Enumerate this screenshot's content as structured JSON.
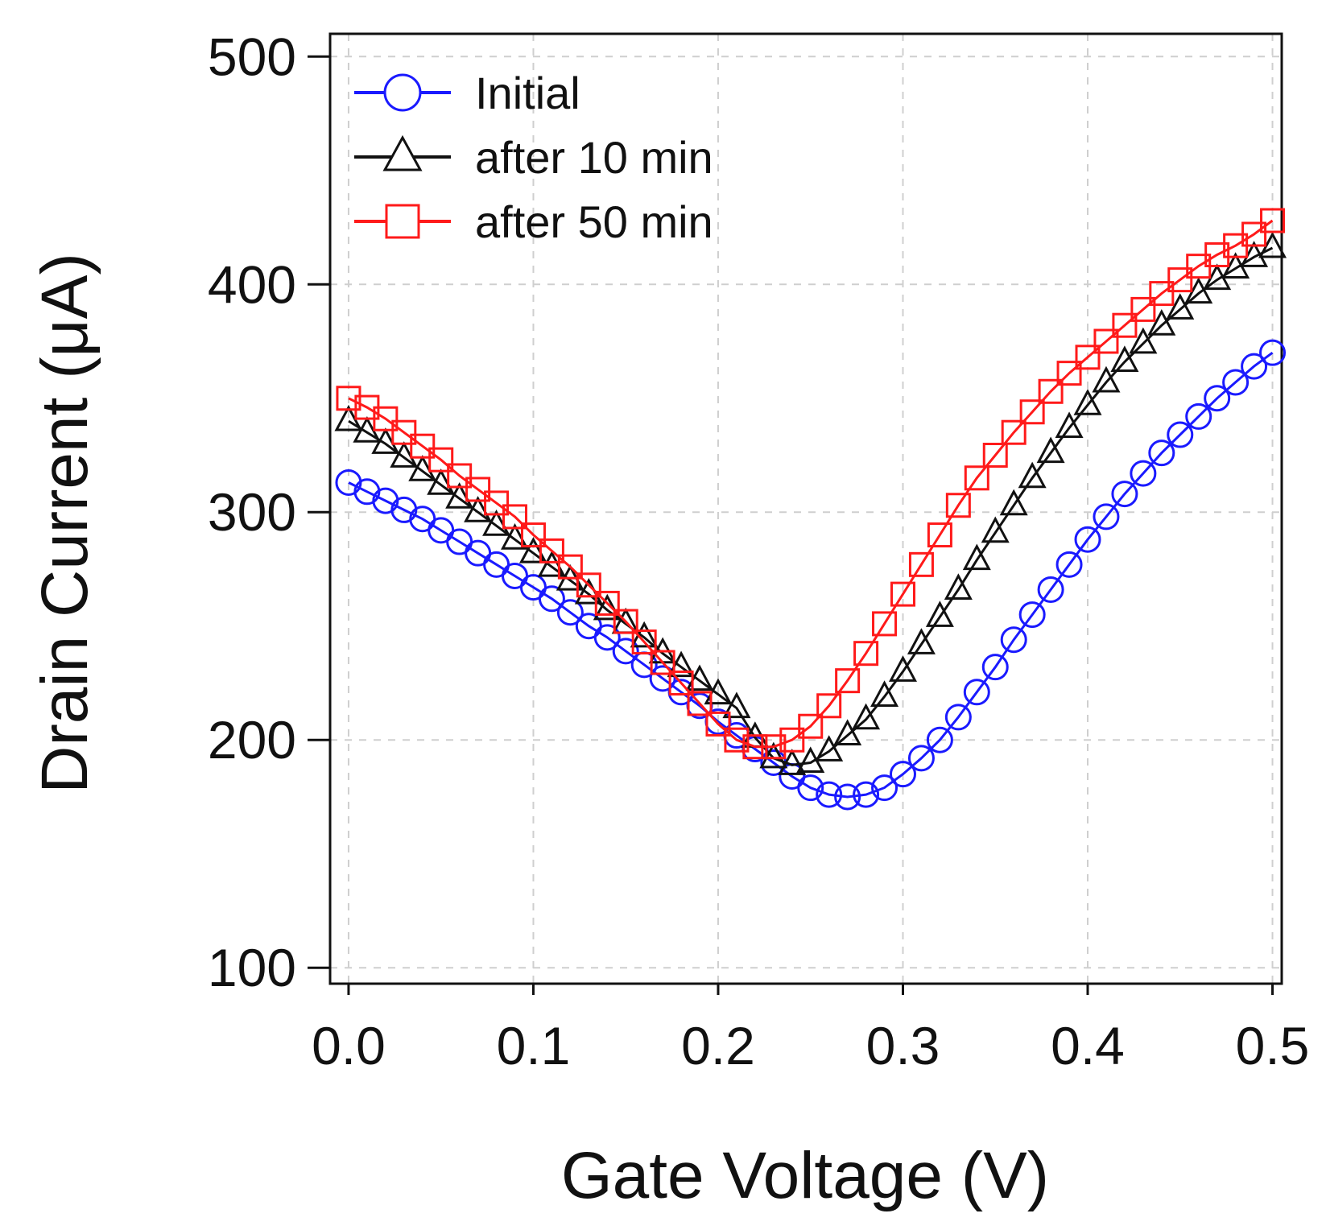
{
  "chart_data": {
    "type": "line",
    "title": "",
    "xlabel": "Gate Voltage (V)",
    "ylabel": "Drain Current (μA)",
    "xlim": [
      -0.01,
      0.505
    ],
    "ylim": [
      93,
      510
    ],
    "grid": true,
    "legend_position": "top-left",
    "xticks": [
      0.0,
      0.1,
      0.2,
      0.3,
      0.4,
      0.5
    ],
    "xtick_labels": [
      "0.0",
      "0.1",
      "0.2",
      "0.3",
      "0.4",
      "0.5"
    ],
    "yticks": [
      100,
      200,
      300,
      400,
      500
    ],
    "ytick_labels": [
      "100",
      "200",
      "300",
      "400",
      "500"
    ],
    "x": [
      0.0,
      0.01,
      0.02,
      0.03,
      0.04,
      0.05,
      0.06,
      0.07,
      0.08,
      0.09,
      0.1,
      0.11,
      0.12,
      0.13,
      0.14,
      0.15,
      0.16,
      0.17,
      0.18,
      0.19,
      0.2,
      0.21,
      0.22,
      0.23,
      0.24,
      0.25,
      0.26,
      0.27,
      0.28,
      0.29,
      0.3,
      0.31,
      0.32,
      0.33,
      0.34,
      0.35,
      0.36,
      0.37,
      0.38,
      0.39,
      0.4,
      0.41,
      0.42,
      0.43,
      0.44,
      0.45,
      0.46,
      0.47,
      0.48,
      0.49,
      0.5
    ],
    "series": [
      {
        "name": "Initial",
        "color": "#1a1aff",
        "marker": "circle",
        "values": [
          313,
          309,
          305,
          301,
          297,
          292,
          287,
          282,
          277,
          272,
          267,
          262,
          256,
          250,
          245,
          239,
          233,
          227,
          221,
          215,
          208,
          202,
          196,
          190,
          184,
          179,
          176,
          175,
          176,
          179,
          185,
          192,
          200,
          210,
          221,
          232,
          244,
          255,
          266,
          277,
          288,
          298,
          308,
          317,
          326,
          334,
          342,
          350,
          357,
          364,
          370
        ]
      },
      {
        "name": "after 10 min",
        "color": "#111111",
        "marker": "triangle",
        "values": [
          340,
          335,
          330,
          324,
          318,
          312,
          306,
          300,
          294,
          288,
          282,
          276,
          270,
          264,
          257,
          251,
          245,
          238,
          232,
          226,
          220,
          214,
          201,
          192,
          189,
          190,
          195,
          202,
          209,
          219,
          230,
          242,
          254,
          266,
          279,
          291,
          303,
          315,
          326,
          337,
          347,
          357,
          366,
          374,
          382,
          389,
          396,
          402,
          407,
          412,
          416
        ]
      },
      {
        "name": "after 50 min",
        "color": "#ff1a1a",
        "marker": "square",
        "values": [
          350,
          346,
          341,
          335,
          329,
          323,
          316,
          310,
          304,
          298,
          290,
          283,
          276,
          268,
          260,
          252,
          243,
          234,
          225,
          216,
          207,
          200,
          197,
          197,
          200,
          206,
          215,
          226,
          238,
          251,
          264,
          277,
          290,
          303,
          315,
          325,
          335,
          344,
          353,
          361,
          368,
          375,
          382,
          389,
          396,
          402,
          408,
          413,
          417,
          422,
          428
        ]
      }
    ]
  }
}
